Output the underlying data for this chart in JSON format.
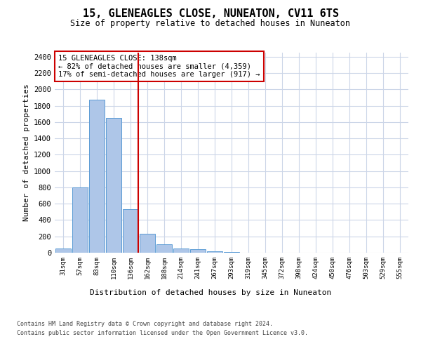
{
  "title": "15, GLENEAGLES CLOSE, NUNEATON, CV11 6TS",
  "subtitle": "Size of property relative to detached houses in Nuneaton",
  "xlabel": "Distribution of detached houses by size in Nuneaton",
  "ylabel": "Number of detached properties",
  "categories": [
    "31sqm",
    "57sqm",
    "83sqm",
    "110sqm",
    "136sqm",
    "162sqm",
    "188sqm",
    "214sqm",
    "241sqm",
    "267sqm",
    "293sqm",
    "319sqm",
    "345sqm",
    "372sqm",
    "398sqm",
    "424sqm",
    "450sqm",
    "476sqm",
    "503sqm",
    "529sqm",
    "555sqm"
  ],
  "values": [
    50,
    800,
    1870,
    1650,
    530,
    230,
    105,
    50,
    40,
    20,
    5,
    0,
    0,
    0,
    0,
    0,
    0,
    0,
    0,
    0,
    0
  ],
  "bar_color": "#aec6e8",
  "bar_edge_color": "#5b9bd5",
  "vline_bin_index": 4,
  "vline_color": "#cc0000",
  "annotation_text": "15 GLENEAGLES CLOSE: 138sqm\n← 82% of detached houses are smaller (4,359)\n17% of semi-detached houses are larger (917) →",
  "annotation_box_color": "#ffffff",
  "annotation_box_edge_color": "#cc0000",
  "ylim": [
    0,
    2450
  ],
  "yticks": [
    0,
    200,
    400,
    600,
    800,
    1000,
    1200,
    1400,
    1600,
    1800,
    2000,
    2200,
    2400
  ],
  "background_color": "#ffffff",
  "grid_color": "#ccd6e8",
  "footer_line1": "Contains HM Land Registry data © Crown copyright and database right 2024.",
  "footer_line2": "Contains public sector information licensed under the Open Government Licence v3.0."
}
